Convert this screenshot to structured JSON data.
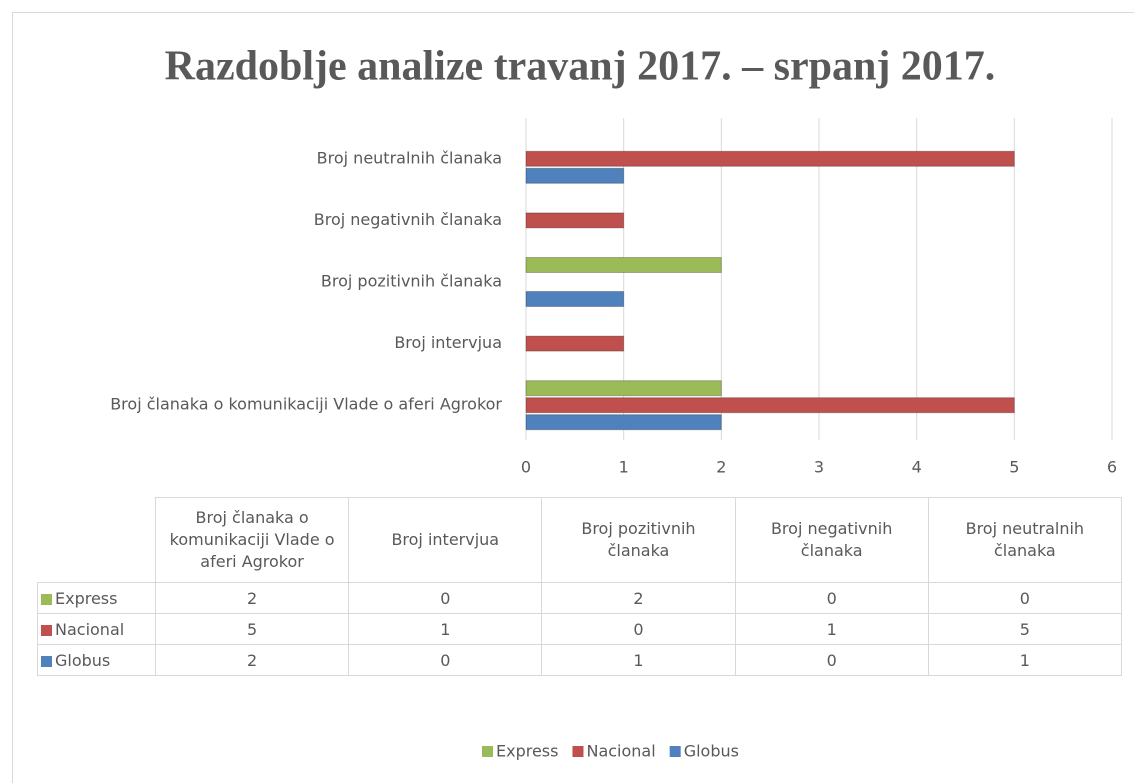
{
  "chart_data": {
    "type": "bar",
    "orientation": "horizontal",
    "title": "Razdoblje analize travanj 2017. – srpanj 2017.",
    "categories": [
      "Broj članaka o komunikaciji Vlade o aferi Agrokor",
      "Broj intervjua",
      "Broj pozitivnih članaka",
      "Broj negativnih članaka",
      "Broj neutralnih članaka"
    ],
    "series": [
      {
        "name": "Express",
        "color": "#9bbb59",
        "values": [
          2,
          0,
          2,
          0,
          0
        ]
      },
      {
        "name": "Nacional",
        "color": "#c0504d",
        "values": [
          5,
          1,
          0,
          1,
          5
        ]
      },
      {
        "name": "Globus",
        "color": "#4f81bd",
        "values": [
          2,
          0,
          1,
          0,
          1
        ]
      }
    ],
    "xlim": [
      0,
      6
    ],
    "xticks": [
      0,
      1,
      2,
      3,
      4,
      5,
      6
    ],
    "grid": true,
    "legend": "bottom",
    "data_table": true
  }
}
